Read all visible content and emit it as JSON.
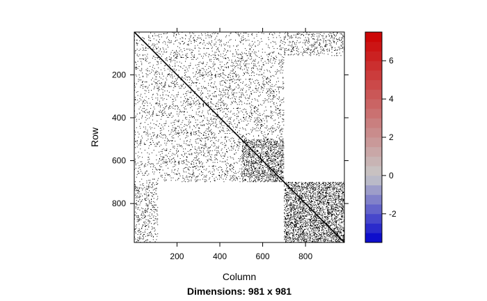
{
  "chart_data": {
    "type": "heatmap",
    "title": "Dimensions: 981 x 981",
    "xlabel": "Column",
    "ylabel": "Row",
    "nrow": 981,
    "ncol": 981,
    "xlim": [
      0.5,
      981.5
    ],
    "ylim": [
      981.5,
      0.5
    ],
    "x_ticks": [
      200,
      400,
      600,
      800
    ],
    "y_ticks": [
      200,
      400,
      600,
      800
    ],
    "x_tick_labels": [
      "200",
      "400",
      "600",
      "800"
    ],
    "y_tick_labels": [
      "200",
      "400",
      "600",
      "800"
    ],
    "nonzero_color": "#000000",
    "background_color": "#ffffff",
    "diagonal": true,
    "blocks": [
      {
        "rows": [
          1,
          110
        ],
        "cols": [
          1,
          981
        ],
        "density": 0.05
      },
      {
        "rows": [
          1,
          981
        ],
        "cols": [
          1,
          110
        ],
        "density": 0.05
      },
      {
        "rows": [
          100,
          700
        ],
        "cols": [
          100,
          700
        ],
        "density": 0.07
      },
      {
        "rows": [
          500,
          700
        ],
        "cols": [
          500,
          700
        ],
        "density": 0.25
      },
      {
        "rows": [
          700,
          981
        ],
        "cols": [
          700,
          981
        ],
        "density": 0.28
      },
      {
        "rows": [
          1,
          110
        ],
        "cols": [
          700,
          981
        ],
        "density": 0.1
      },
      {
        "rows": [
          700,
          981
        ],
        "cols": [
          1,
          110
        ],
        "density": 0.1
      }
    ],
    "colorkey": {
      "min": -3.5,
      "max": 7.5,
      "ticks": [
        -2,
        0,
        2,
        4,
        6
      ],
      "tick_labels": [
        "-2",
        "0",
        "2",
        "4",
        "6"
      ],
      "low_color": "#0000cc",
      "mid_color": "#c8c8c8",
      "high_color": "#cc0000"
    }
  }
}
